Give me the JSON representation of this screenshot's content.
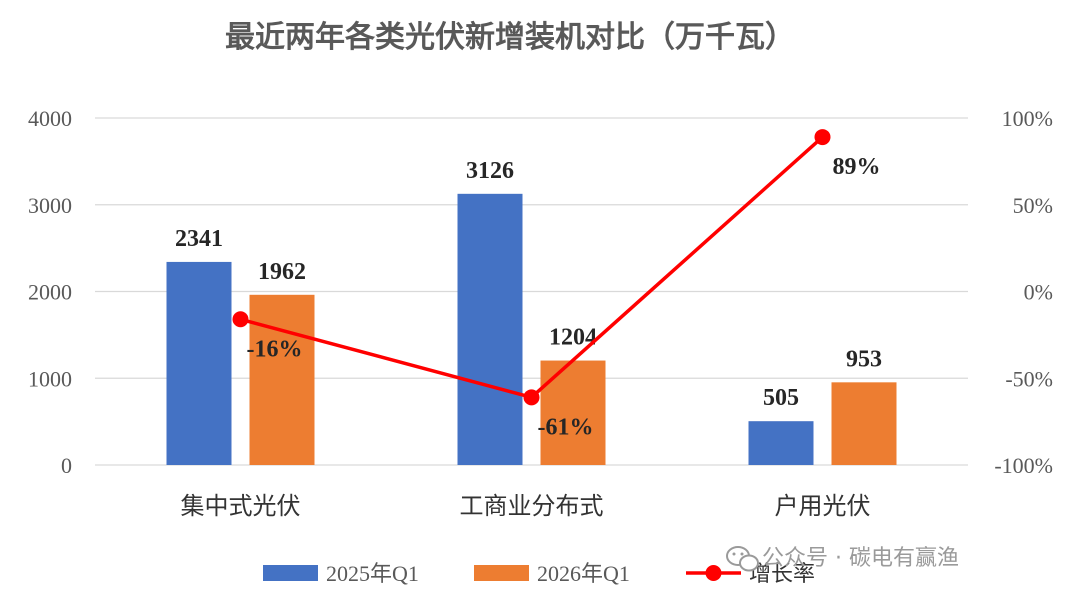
{
  "chart_data": {
    "type": "bar",
    "title": "最近两年各类光伏新增装机对比（万千瓦）",
    "categories": [
      "集中式光伏",
      "工商业分布式",
      "户用光伏"
    ],
    "series": [
      {
        "name": "2025年Q1",
        "type": "bar",
        "axis": "left",
        "color": "#4472C4",
        "values": [
          2341,
          3126,
          505
        ]
      },
      {
        "name": "2026年Q1",
        "type": "bar",
        "axis": "left",
        "color": "#ED7D31",
        "values": [
          1962,
          1204,
          953
        ]
      },
      {
        "name": "增长率",
        "type": "line",
        "axis": "right",
        "color": "#FF0000",
        "values": [
          -16,
          -61,
          89
        ],
        "labels": [
          "-16%",
          "-61%",
          "89%"
        ]
      }
    ],
    "left_axis": {
      "min": 0,
      "max": 4000,
      "ticks": [
        "0",
        "1000",
        "2000",
        "3000",
        "4000"
      ]
    },
    "right_axis": {
      "min": -100,
      "max": 100,
      "ticks": [
        "-100%",
        "-50%",
        "0%",
        "50%",
        "100%"
      ]
    },
    "grid": true,
    "legend_position": "bottom"
  },
  "watermark": {
    "icon": "wechat-icon",
    "text": "公众号 · 碳电有赢渔"
  }
}
